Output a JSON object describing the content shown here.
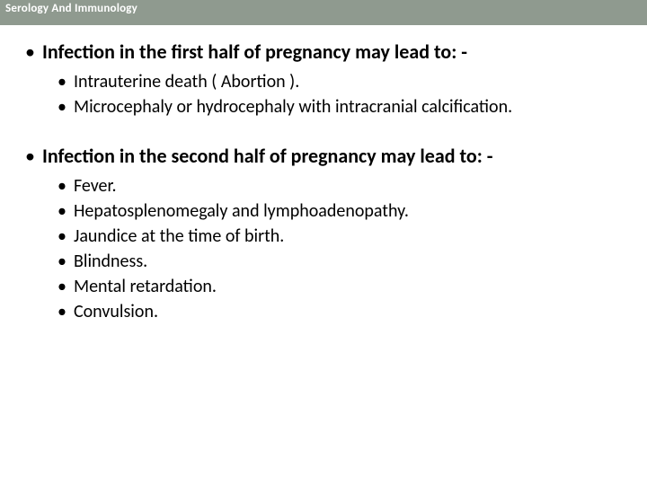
{
  "header": {
    "title": "Serology And Immunology"
  },
  "sections": [
    {
      "heading": "Infection in the first half of pregnancy may lead to: -",
      "items": [
        "Intrauterine death ( Abortion ).",
        "Microcephaly or hydrocephaly with intracranial calcification."
      ]
    },
    {
      "heading": "Infection in the second half of pregnancy may lead to: -",
      "items": [
        "Fever.",
        "Hepatosplenomegaly and lymphoadenopathy.",
        "Jaundice at the time of birth.",
        "Blindness.",
        "Mental retardation.",
        "Convulsion."
      ]
    }
  ]
}
